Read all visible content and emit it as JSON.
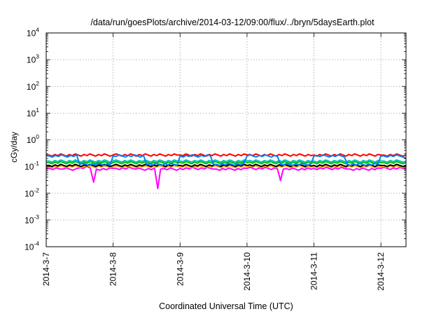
{
  "chart_data": {
    "type": "line",
    "title": "/data/run/goesPlots/archive/2014-03-12/09:00/flux/../bryn/5daysEarth.plot",
    "xlabel": "Coordinated Universal Time (UTC)",
    "ylabel": "cGy/day",
    "y_scale": "log",
    "ylim": [
      0.0001,
      10000
    ],
    "xlim": [
      "2014-03-07T00:00",
      "2014-03-12T09:00"
    ],
    "grid": true,
    "legend": "none",
    "y_ticks": [
      {
        "base": "10",
        "exp": "4",
        "value": 10000
      },
      {
        "base": "10",
        "exp": "3",
        "value": 1000
      },
      {
        "base": "10",
        "exp": "2",
        "value": 100
      },
      {
        "base": "10",
        "exp": "1",
        "value": 10
      },
      {
        "base": "10",
        "exp": "0",
        "value": 1
      },
      {
        "base": "10",
        "exp": "-1",
        "value": 0.1
      },
      {
        "base": "10",
        "exp": "-2",
        "value": 0.01
      },
      {
        "base": "10",
        "exp": "-3",
        "value": 0.001
      },
      {
        "base": "10",
        "exp": "-4",
        "value": 0.0001
      }
    ],
    "x_ticks": [
      {
        "label": "2014-3-7",
        "date": "2014-03-07T00:00"
      },
      {
        "label": "2014-3-8",
        "date": "2014-03-08T00:00"
      },
      {
        "label": "2014-3-9",
        "date": "2014-03-09T00:00"
      },
      {
        "label": "2014-3-10",
        "date": "2014-03-10T00:00"
      },
      {
        "label": "2014-3-11",
        "date": "2014-03-11T00:00"
      },
      {
        "label": "2014-3-12",
        "date": "2014-03-12T00:00"
      }
    ],
    "series": [
      {
        "color": "#ff00ff",
        "x": [
          "2014-03-07T00:00",
          "2014-03-07T06:00",
          "2014-03-07T12:00",
          "2014-03-07T17:00",
          "2014-03-07T18:00",
          "2014-03-08T00:00",
          "2014-03-08T08:00",
          "2014-03-08T16:00",
          "2014-03-08T17:00",
          "2014-03-09T00:00",
          "2014-03-09T12:00",
          "2014-03-10T00:00",
          "2014-03-10T12:00",
          "2014-03-10T13:00",
          "2014-03-11T00:00",
          "2014-03-11T12:00",
          "2014-03-12T00:00",
          "2014-03-12T09:00"
        ],
        "y": [
          0.085,
          0.08,
          0.09,
          0.026,
          0.08,
          0.085,
          0.08,
          0.015,
          0.08,
          0.085,
          0.08,
          0.085,
          0.03,
          0.08,
          0.085,
          0.08,
          0.085,
          0.08
        ]
      },
      {
        "color": "#ffa500",
        "x": [
          "2014-03-07T00:00",
          "2014-03-08T00:00",
          "2014-03-09T00:00",
          "2014-03-10T00:00",
          "2014-03-11T00:00",
          "2014-03-12T00:00",
          "2014-03-12T09:00"
        ],
        "y": [
          0.1,
          0.1,
          0.1,
          0.1,
          0.1,
          0.1,
          0.1
        ]
      },
      {
        "color": "#000000",
        "x": [
          "2014-03-07T00:00",
          "2014-03-08T00:00",
          "2014-03-09T00:00",
          "2014-03-10T00:00",
          "2014-03-11T00:00",
          "2014-03-12T00:00",
          "2014-03-12T09:00"
        ],
        "y": [
          0.11,
          0.11,
          0.11,
          0.11,
          0.11,
          0.11,
          0.11
        ]
      },
      {
        "color": "#00c000",
        "x": [
          "2014-03-07T00:00",
          "2014-03-08T00:00",
          "2014-03-09T00:00",
          "2014-03-10T00:00",
          "2014-03-11T00:00",
          "2014-03-12T00:00",
          "2014-03-12T09:00"
        ],
        "y": [
          0.14,
          0.14,
          0.14,
          0.14,
          0.14,
          0.14,
          0.14
        ]
      },
      {
        "color": "#00bfbf",
        "x": [
          "2014-03-07T00:00",
          "2014-03-08T00:00",
          "2014-03-09T00:00",
          "2014-03-10T00:00",
          "2014-03-11T00:00",
          "2014-03-12T00:00",
          "2014-03-12T09:00"
        ],
        "y": [
          0.16,
          0.16,
          0.16,
          0.16,
          0.16,
          0.16,
          0.16
        ]
      },
      {
        "color": "#ff0000",
        "x": [
          "2014-03-07T00:00",
          "2014-03-08T00:00",
          "2014-03-09T00:00",
          "2014-03-10T00:00",
          "2014-03-11T00:00",
          "2014-03-12T00:00",
          "2014-03-12T09:00"
        ],
        "y": [
          0.27,
          0.27,
          0.27,
          0.27,
          0.27,
          0.27,
          0.27
        ]
      },
      {
        "color": "#0080ff",
        "x": [
          "2014-03-07T00:00",
          "2014-03-07T12:00",
          "2014-03-08T00:00",
          "2014-03-08T12:00",
          "2014-03-09T00:00",
          "2014-03-09T12:00",
          "2014-03-10T00:00",
          "2014-03-10T12:00",
          "2014-03-11T00:00",
          "2014-03-11T12:00",
          "2014-03-12T00:00",
          "2014-03-12T09:00"
        ],
        "y": [
          0.25,
          0.12,
          0.25,
          0.12,
          0.25,
          0.12,
          0.25,
          0.12,
          0.25,
          0.12,
          0.25,
          0.2
        ]
      }
    ]
  }
}
